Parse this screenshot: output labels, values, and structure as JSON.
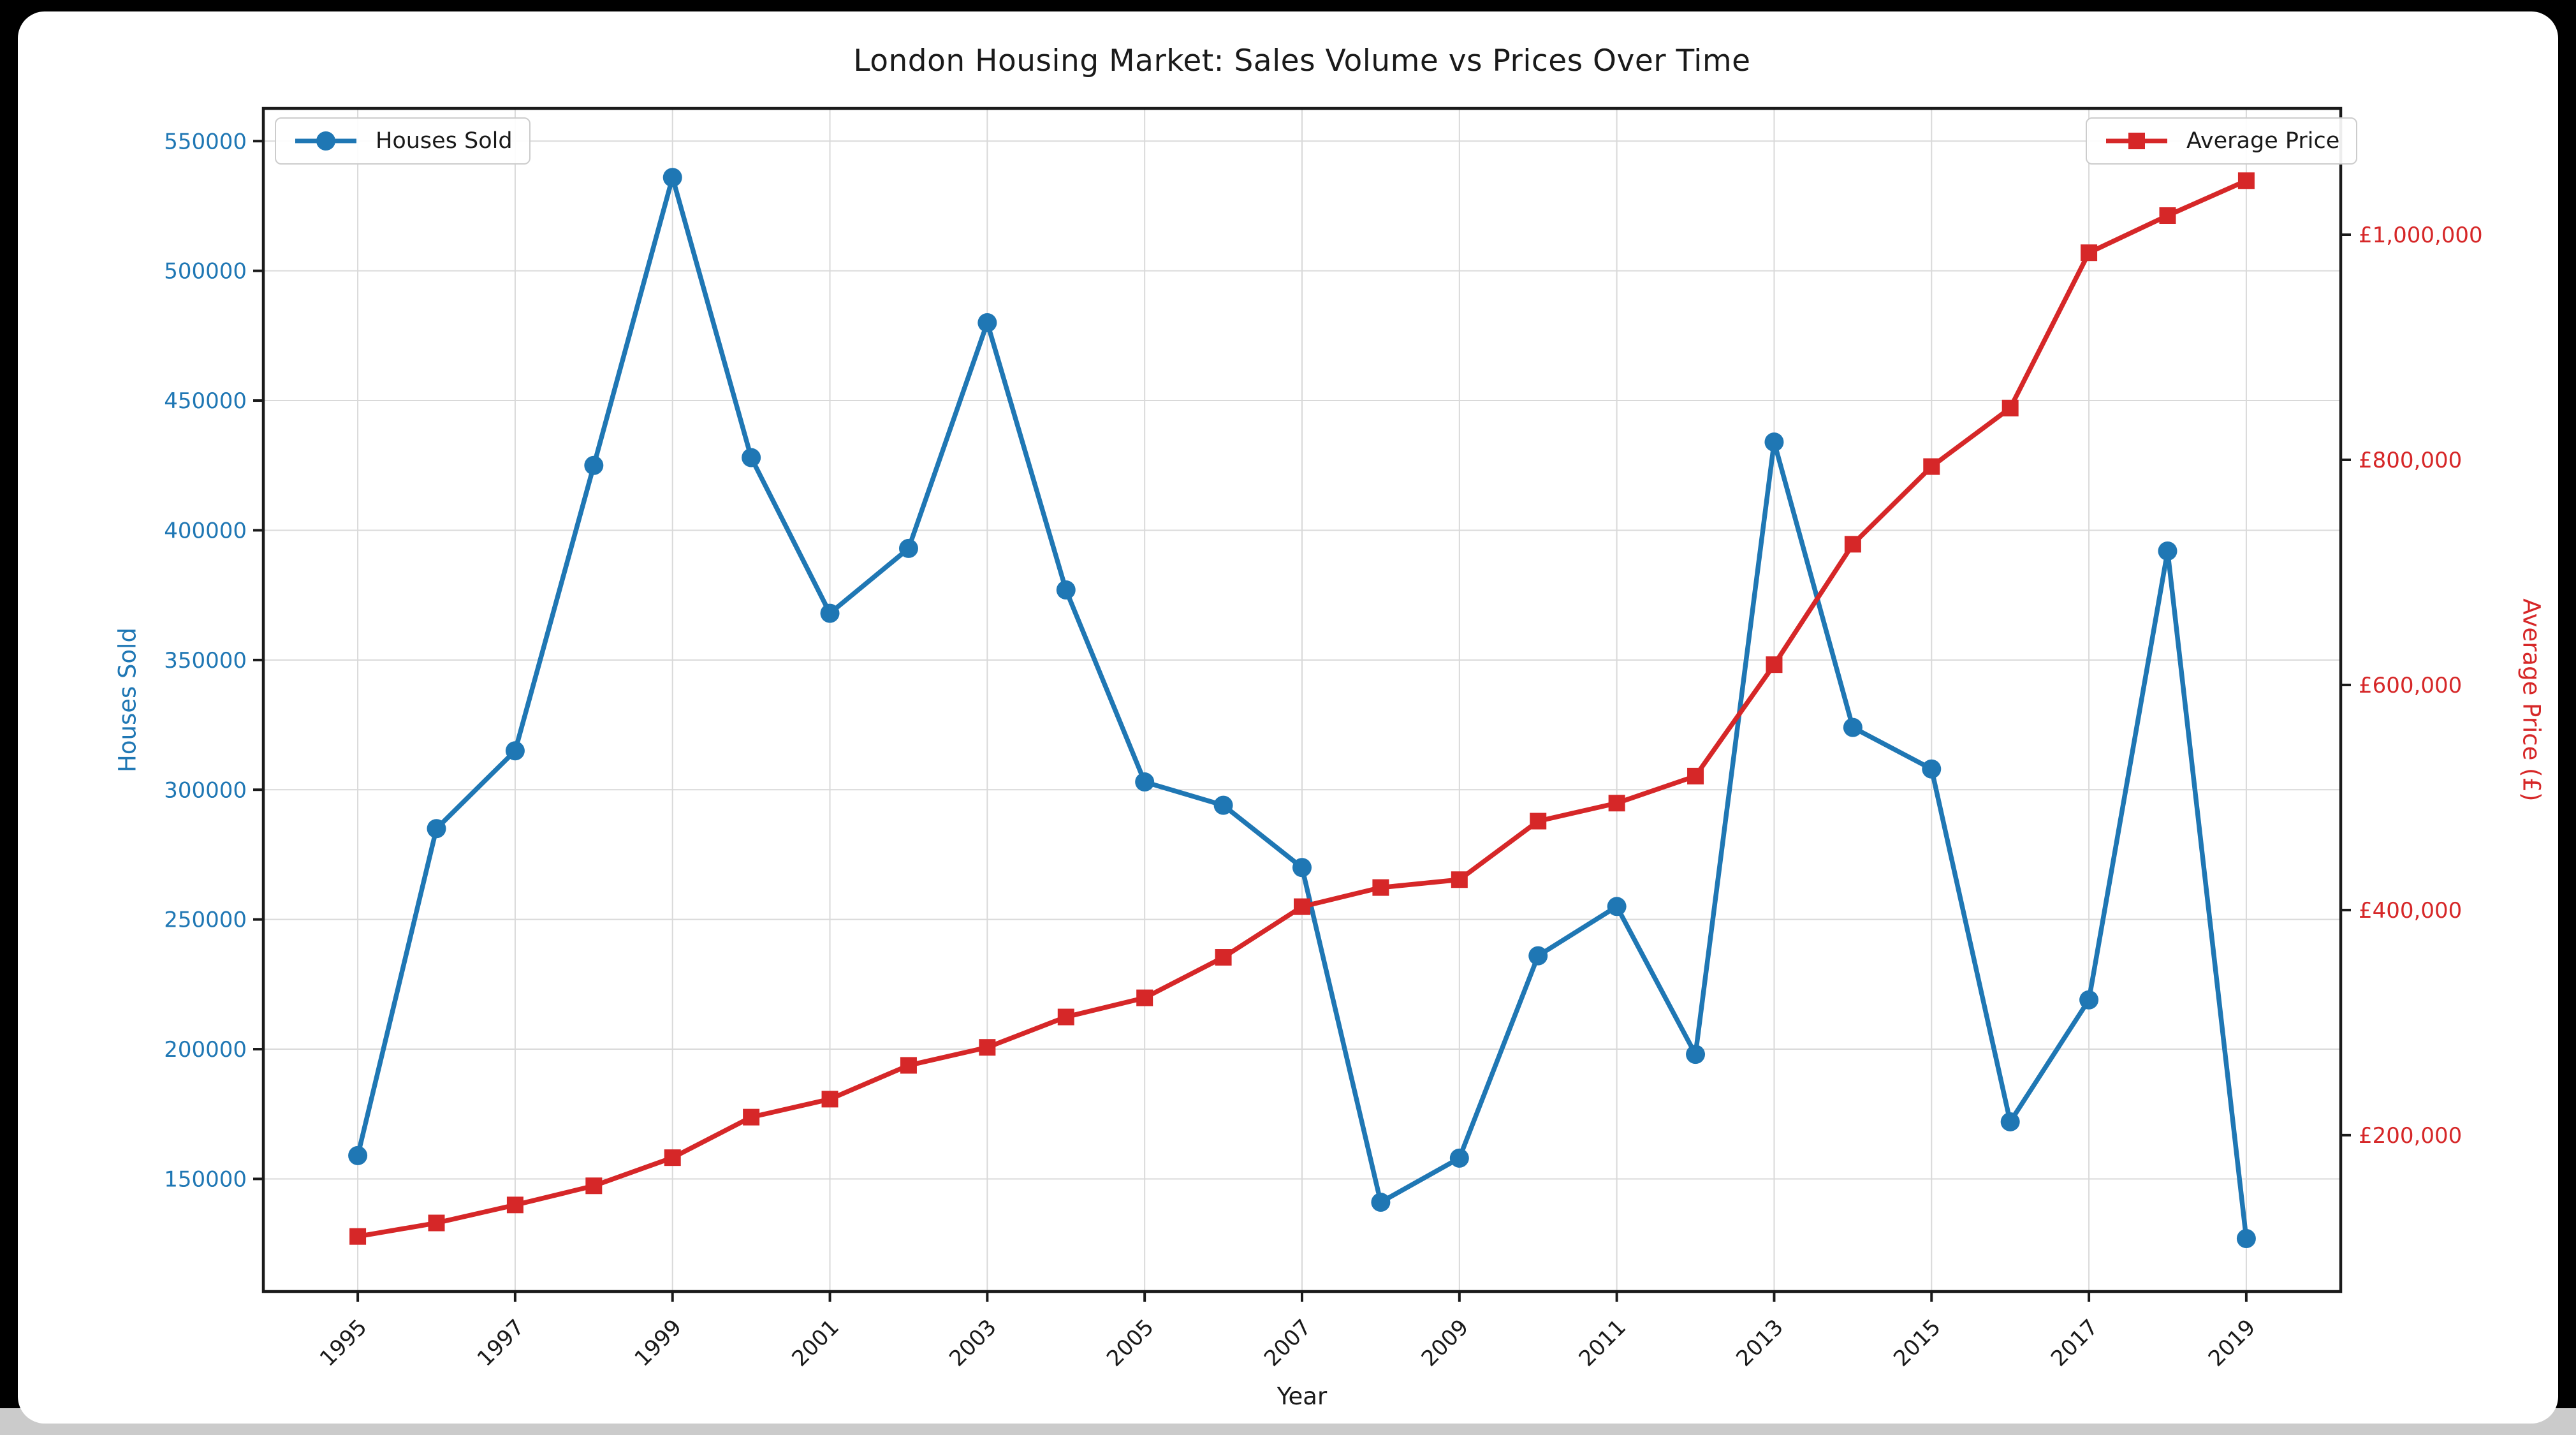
{
  "window": {
    "surround_color": "#000000",
    "bottom_bar_color": "#cbcbcb",
    "figure_background": "#ffffff"
  },
  "chart_data": {
    "type": "line",
    "title": "London Housing Market: Sales Volume vs Prices Over Time",
    "xlabel": "Year",
    "x": [
      1995,
      1996,
      1997,
      1998,
      1999,
      2000,
      2001,
      2002,
      2003,
      2004,
      2005,
      2006,
      2007,
      2008,
      2009,
      2010,
      2011,
      2012,
      2013,
      2014,
      2015,
      2016,
      2017,
      2018,
      2019
    ],
    "x_tick_years": [
      1995,
      1997,
      1999,
      2001,
      2003,
      2005,
      2007,
      2009,
      2011,
      2013,
      2015,
      2017,
      2019
    ],
    "xlim": [
      1993.8,
      2020.2
    ],
    "grid": true,
    "series": [
      {
        "name": "Houses Sold",
        "axis": "left",
        "color": "#1f77b4",
        "marker": "circle",
        "values": [
          159000,
          285000,
          315000,
          425000,
          536000,
          428000,
          368000,
          393000,
          480000,
          377000,
          303000,
          294000,
          270000,
          141000,
          158000,
          236000,
          255000,
          198000,
          434000,
          324000,
          308000,
          172000,
          219000,
          392000,
          127000
        ]
      },
      {
        "name": "Average Price",
        "axis": "right",
        "color": "#d62728",
        "marker": "square",
        "values": [
          110000,
          122000,
          138000,
          155000,
          180000,
          216000,
          232000,
          262000,
          278000,
          305000,
          322000,
          358000,
          403000,
          420000,
          427000,
          479000,
          495000,
          519000,
          618000,
          725000,
          794000,
          846000,
          984000,
          1017000,
          1048000
        ]
      }
    ],
    "y_left": {
      "label": "Houses Sold",
      "color": "#1f77b4",
      "ticks": [
        150000,
        200000,
        250000,
        300000,
        350000,
        400000,
        450000,
        500000,
        550000
      ],
      "lim": [
        106600,
        562600
      ]
    },
    "y_right": {
      "label": "Average Price (£)",
      "color": "#d62728",
      "ticks": [
        200000,
        400000,
        600000,
        800000,
        1000000
      ],
      "tick_prefix": "£",
      "lim": [
        61100,
        1112200
      ]
    },
    "legend": [
      {
        "label": "Houses Sold",
        "position": "upper-left"
      },
      {
        "label": "Average Price",
        "position": "upper-right"
      }
    ],
    "colors": {
      "grid": "#d9d9d9",
      "spine": "#1a1a1a",
      "tick_text": "#1a1a1a"
    }
  }
}
